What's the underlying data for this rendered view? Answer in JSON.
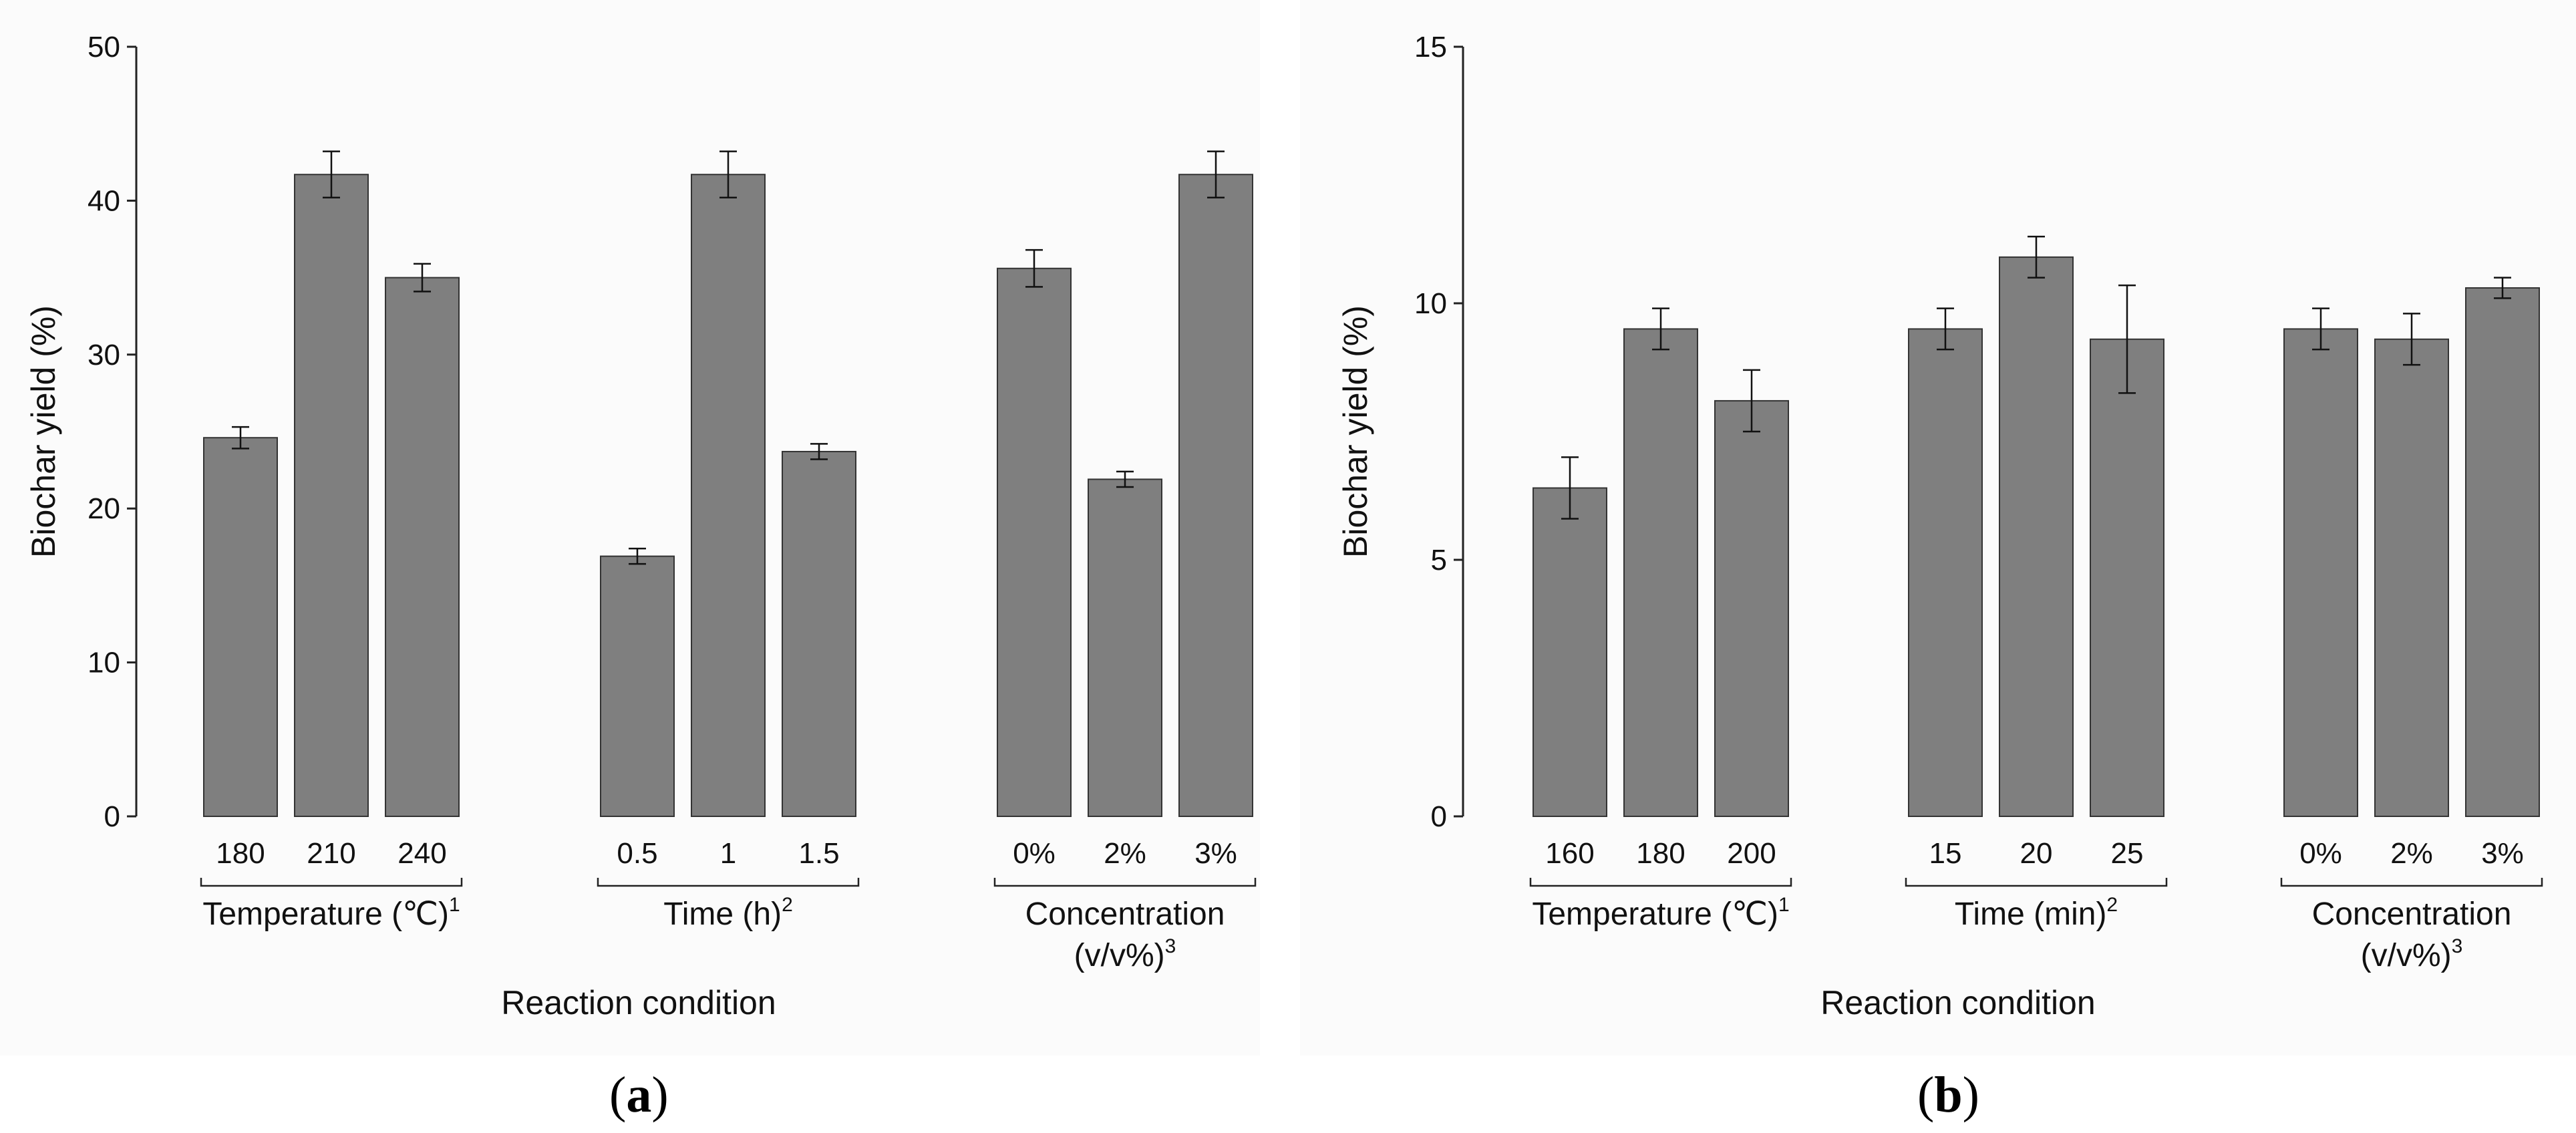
{
  "chart_data": [
    {
      "type": "bar",
      "panel_label": "a",
      "ylabel": "Biochar yield (%)",
      "xlabel": "Reaction condition",
      "ylim": [
        0,
        50
      ],
      "yticks": [
        0,
        10,
        20,
        30,
        40,
        50
      ],
      "bar_color": "#7f7f7f",
      "groups": [
        {
          "name": "Temperature (℃)",
          "sup": "1",
          "categories": [
            "180",
            "210",
            "240"
          ],
          "values": [
            24.6,
            41.7,
            35.0
          ],
          "errors": [
            0.7,
            1.5,
            0.9
          ]
        },
        {
          "name": "Time (h)",
          "sup": "2",
          "categories": [
            "0.5",
            "1",
            "1.5"
          ],
          "values": [
            16.9,
            41.7,
            23.7
          ],
          "errors": [
            0.5,
            1.5,
            0.5
          ]
        },
        {
          "name": "Concentration",
          "name_line2": "(v/v%)",
          "sup": "3",
          "categories": [
            "0%",
            "2%",
            "3%"
          ],
          "values": [
            35.6,
            21.9,
            41.7
          ],
          "errors": [
            1.2,
            0.5,
            1.5
          ]
        }
      ]
    },
    {
      "type": "bar",
      "panel_label": "b",
      "ylabel": "Biochar yield (%)",
      "xlabel": "Reaction condition",
      "ylim": [
        0,
        15
      ],
      "yticks": [
        0,
        5,
        10,
        15
      ],
      "bar_color": "#7f7f7f",
      "groups": [
        {
          "name": "Temperature (℃)",
          "sup": "1",
          "categories": [
            "160",
            "180",
            "200"
          ],
          "values": [
            6.4,
            9.5,
            8.1
          ],
          "errors": [
            0.6,
            0.4,
            0.6
          ]
        },
        {
          "name": "Time (min)",
          "sup": "2",
          "categories": [
            "15",
            "20",
            "25"
          ],
          "values": [
            9.5,
            10.9,
            9.3
          ],
          "errors": [
            0.4,
            0.4,
            1.05
          ]
        },
        {
          "name": "Concentration",
          "name_line2": "(v/v%)",
          "sup": "3",
          "categories": [
            "0%",
            "2%",
            "3%"
          ],
          "values": [
            9.5,
            9.3,
            10.3
          ],
          "errors": [
            0.4,
            0.5,
            0.2
          ]
        }
      ]
    }
  ]
}
